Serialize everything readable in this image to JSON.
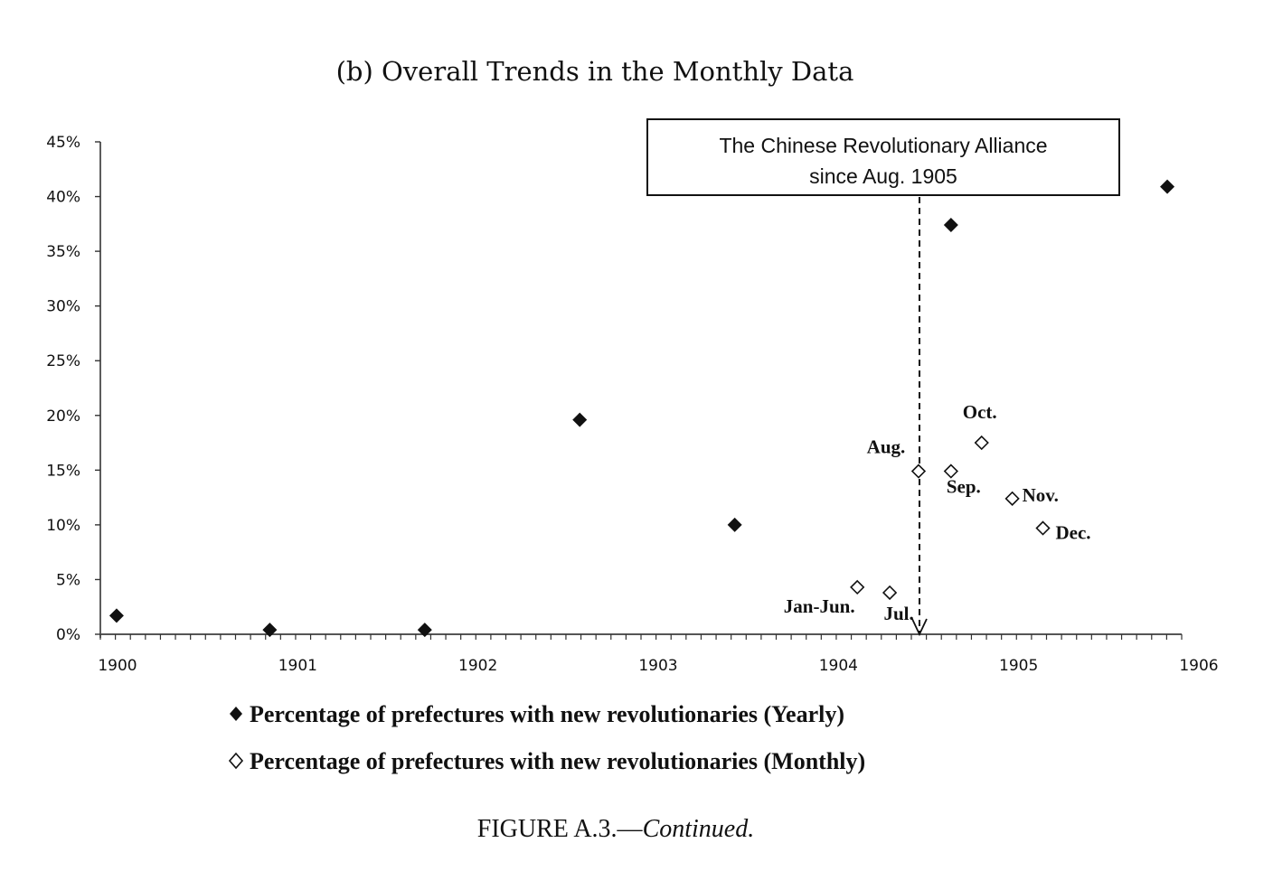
{
  "chart_data": {
    "type": "scatter",
    "title": "(b) Overall Trends in the Monthly Data",
    "caption": {
      "prefix": "FIGURE A.3.—",
      "suffix": "Continued."
    },
    "xlabel": "",
    "ylabel": "",
    "xlim": [
      1900,
      1906
    ],
    "ylim": [
      0,
      45
    ],
    "x_ticks": [
      "1900",
      "1901",
      "1902",
      "1903",
      "1904",
      "1905",
      "1906"
    ],
    "x_minor_per_year": 12,
    "y_ticks": [
      "0%",
      "5%",
      "10%",
      "15%",
      "20%",
      "25%",
      "30%",
      "35%",
      "40%",
      "45%"
    ],
    "y_tick_values": [
      0,
      5,
      10,
      15,
      20,
      25,
      30,
      35,
      40,
      45
    ],
    "grid": false,
    "legend_position": "bottom",
    "series": [
      {
        "name": "Percentage of prefectures with new revolutionaries (Yearly)",
        "marker": "filled-diamond",
        "points": [
          {
            "x": 1900.09,
            "y": 1.7
          },
          {
            "x": 1900.94,
            "y": 0.4
          },
          {
            "x": 1901.8,
            "y": 0.4
          },
          {
            "x": 1902.66,
            "y": 19.6
          },
          {
            "x": 1903.52,
            "y": 10.0
          },
          {
            "x": 1904.72,
            "y": 37.4
          },
          {
            "x": 1905.92,
            "y": 40.9
          }
        ]
      },
      {
        "name": "Percentage of prefectures with new revolutionaries (Monthly)",
        "marker": "hollow-diamond",
        "points": [
          {
            "x": 1904.2,
            "y": 4.3,
            "label": "Jan-Jun.",
            "label_pos": "below-left"
          },
          {
            "x": 1904.38,
            "y": 3.8,
            "label": "Jul.",
            "label_pos": "below"
          },
          {
            "x": 1904.54,
            "y": 14.9,
            "label": "Aug.",
            "label_pos": "above-left"
          },
          {
            "x": 1904.72,
            "y": 14.9,
            "label": "Sep.",
            "label_pos": "below"
          },
          {
            "x": 1904.89,
            "y": 17.5,
            "label": "Oct.",
            "label_pos": "above"
          },
          {
            "x": 1905.06,
            "y": 12.4,
            "label": "Nov.",
            "label_pos": "right"
          },
          {
            "x": 1905.23,
            "y": 9.7,
            "label": "Dec.",
            "label_pos": "right"
          }
        ]
      }
    ],
    "annotation": {
      "lines": [
        "The Chinese  Revolutionary Alliance",
        "since Aug. 1905"
      ],
      "x": 1904.54,
      "style": "dashed-arrow-to-axis"
    }
  }
}
